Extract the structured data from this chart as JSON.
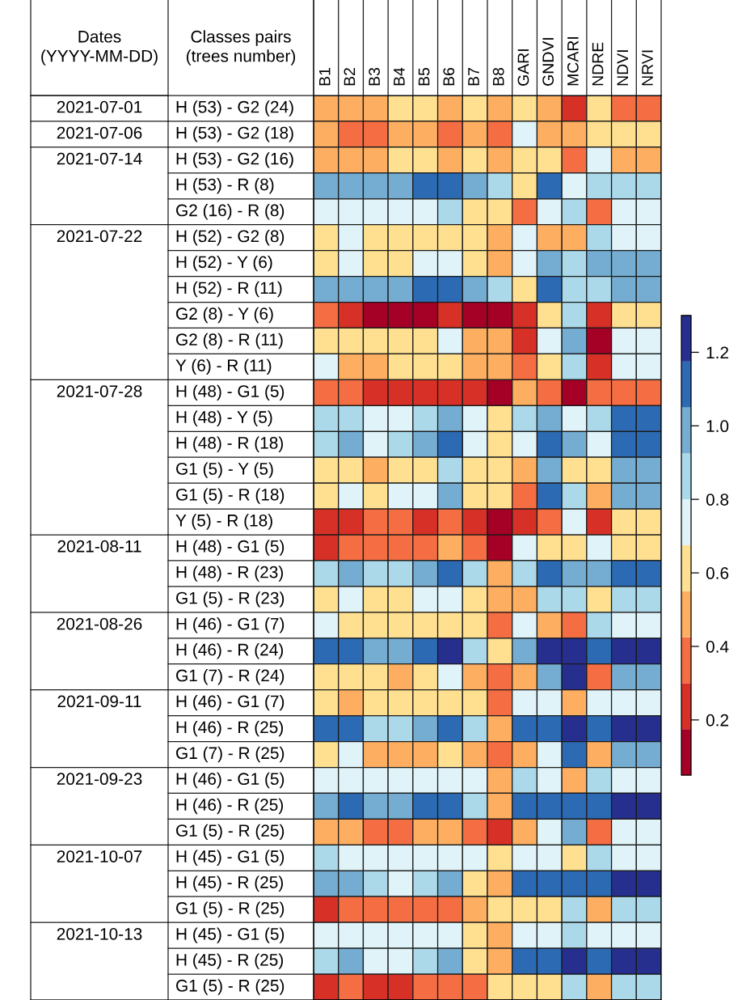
{
  "chart_data": {
    "type": "heatmap",
    "ylabel": "Classes pairs\n(trees number)",
    "y2label": "Dates\n(YYYY-MM-DD)",
    "categories": [
      "B1",
      "B2",
      "B3",
      "B4",
      "B5",
      "B6",
      "B7",
      "B8",
      "GARI",
      "GNDVI",
      "MCARI",
      "NDRE",
      "NDVI",
      "NRVI"
    ],
    "y_categories": [
      "H (53) - G2 (24)",
      "H (53) - G2 (18)",
      "H (53) - G2 (16)",
      "H (53) - R (8)",
      "G2 (16) - R (8)",
      "H (52) - G2 (8)",
      "H (52) - Y (6)",
      "H (52) - R (11)",
      "G2 (8) - Y (6)",
      "G2 (8) - R (11)",
      "Y (6) - R (11)",
      "H (48) - G1 (5)",
      "H (48) - Y (5)",
      "H (48) - R (18)",
      "G1 (5) - Y (5)",
      "G1 (5) - R (18)",
      "Y (5) - R (18)",
      "H (48) - G1 (5)",
      "H (48) - R (23)",
      "G1 (5) - R (23)",
      "H (46) - G1 (7)",
      "H (46) - R (24)",
      "G1 (7) - R (24)",
      "H (46) - G1 (7)",
      "H (46) - R (25)",
      "G1 (7) - R (25)",
      "H (46) - G1 (5)",
      "H (46) - R (25)",
      "G1 (5) - R (25)",
      "H (45) - G1 (5)",
      "H (45) - R (25)",
      "G1 (5) - R (25)",
      "H (45) - G1 (5)",
      "H (45) - R (25)",
      "G1 (5) - R (25)"
    ],
    "y2_categories": [
      "2021-07-01",
      "2021-07-06",
      "2021-07-14",
      null,
      null,
      "2021-07-22",
      null,
      null,
      null,
      null,
      null,
      "2021-07-28",
      null,
      null,
      null,
      null,
      null,
      "2021-08-11",
      null,
      null,
      "2021-08-26",
      null,
      null,
      "2021-09-11",
      null,
      null,
      "2021-09-23",
      null,
      null,
      "2021-10-07",
      null,
      null,
      "2021-10-13",
      null,
      null
    ],
    "cells": [
      [
        0.49,
        0.49,
        0.49,
        0.61,
        0.61,
        0.49,
        0.61,
        0.49,
        0.61,
        0.49,
        0.24,
        0.61,
        0.36,
        0.36
      ],
      [
        0.49,
        0.36,
        0.36,
        0.49,
        0.49,
        0.36,
        0.49,
        0.36,
        0.74,
        0.49,
        0.49,
        0.61,
        0.61,
        0.61
      ],
      [
        0.49,
        0.49,
        0.49,
        0.61,
        0.61,
        0.49,
        0.61,
        0.49,
        0.61,
        0.61,
        0.36,
        0.74,
        0.49,
        0.49
      ],
      [
        0.99,
        0.99,
        0.99,
        0.99,
        1.11,
        1.11,
        0.99,
        0.86,
        0.61,
        1.11,
        0.74,
        0.86,
        0.86,
        0.86
      ],
      [
        0.74,
        0.74,
        0.74,
        0.74,
        0.74,
        0.86,
        0.61,
        0.61,
        0.36,
        0.74,
        0.86,
        0.36,
        0.74,
        0.74
      ],
      [
        0.61,
        0.74,
        0.61,
        0.61,
        0.61,
        0.61,
        0.61,
        0.49,
        0.74,
        0.49,
        0.49,
        0.86,
        0.74,
        0.74
      ],
      [
        0.61,
        0.74,
        0.61,
        0.61,
        0.74,
        0.74,
        0.61,
        0.49,
        0.74,
        0.99,
        0.86,
        0.99,
        0.99,
        0.99
      ],
      [
        0.99,
        0.99,
        0.99,
        0.99,
        1.11,
        1.11,
        0.99,
        0.86,
        0.61,
        1.11,
        0.86,
        0.86,
        0.99,
        0.99
      ],
      [
        0.36,
        0.24,
        0.11,
        0.11,
        0.11,
        0.24,
        0.11,
        0.11,
        0.24,
        0.61,
        0.86,
        0.24,
        0.61,
        0.61
      ],
      [
        0.61,
        0.61,
        0.61,
        0.61,
        0.61,
        0.74,
        0.49,
        0.49,
        0.24,
        0.74,
        0.99,
        0.11,
        0.74,
        0.74
      ],
      [
        0.74,
        0.49,
        0.49,
        0.61,
        0.61,
        0.61,
        0.49,
        0.49,
        0.36,
        0.61,
        0.86,
        0.24,
        0.74,
        0.74
      ],
      [
        0.36,
        0.36,
        0.24,
        0.24,
        0.24,
        0.24,
        0.24,
        0.11,
        0.49,
        0.36,
        0.11,
        0.36,
        0.36,
        0.36
      ],
      [
        0.86,
        0.86,
        0.74,
        0.74,
        0.86,
        0.99,
        0.74,
        0.61,
        0.86,
        0.99,
        0.74,
        0.86,
        1.11,
        1.11
      ],
      [
        0.86,
        0.99,
        0.74,
        0.86,
        0.99,
        1.11,
        0.74,
        0.61,
        0.74,
        1.11,
        0.99,
        0.74,
        1.11,
        1.11
      ],
      [
        0.61,
        0.61,
        0.49,
        0.61,
        0.61,
        0.86,
        0.61,
        0.61,
        0.49,
        0.99,
        0.61,
        0.61,
        0.99,
        0.99
      ],
      [
        0.61,
        0.74,
        0.61,
        0.74,
        0.74,
        0.99,
        0.61,
        0.61,
        0.36,
        1.11,
        0.86,
        0.49,
        0.99,
        0.99
      ],
      [
        0.24,
        0.24,
        0.36,
        0.36,
        0.24,
        0.36,
        0.24,
        0.11,
        0.24,
        0.36,
        0.74,
        0.24,
        0.61,
        0.61
      ],
      [
        0.24,
        0.36,
        0.36,
        0.36,
        0.36,
        0.49,
        0.36,
        0.11,
        0.74,
        0.61,
        0.61,
        0.74,
        0.61,
        0.61
      ],
      [
        0.86,
        0.99,
        0.86,
        0.86,
        0.99,
        1.11,
        0.86,
        0.49,
        0.86,
        1.11,
        0.99,
        0.99,
        1.11,
        1.11
      ],
      [
        0.61,
        0.74,
        0.61,
        0.61,
        0.74,
        0.74,
        0.61,
        0.49,
        0.49,
        0.86,
        0.86,
        0.61,
        0.86,
        0.86
      ],
      [
        0.74,
        0.61,
        0.61,
        0.61,
        0.61,
        0.61,
        0.61,
        0.36,
        0.74,
        0.49,
        0.36,
        0.86,
        0.74,
        0.74
      ],
      [
        1.11,
        1.11,
        0.99,
        0.99,
        1.11,
        1.24,
        0.86,
        0.61,
        0.99,
        1.24,
        1.24,
        1.11,
        1.24,
        1.24
      ],
      [
        0.61,
        0.61,
        0.61,
        0.49,
        0.61,
        0.74,
        0.49,
        0.36,
        0.49,
        0.99,
        1.24,
        0.36,
        0.99,
        0.99
      ],
      [
        0.61,
        0.49,
        0.61,
        0.61,
        0.61,
        0.61,
        0.61,
        0.36,
        0.74,
        0.74,
        0.49,
        0.74,
        0.74,
        0.74
      ],
      [
        1.11,
        1.11,
        0.86,
        0.86,
        0.99,
        1.11,
        0.86,
        0.49,
        1.11,
        1.11,
        1.24,
        1.11,
        1.24,
        1.24
      ],
      [
        0.61,
        0.74,
        0.49,
        0.49,
        0.49,
        0.61,
        0.49,
        0.36,
        0.49,
        0.74,
        1.11,
        0.49,
        0.99,
        0.99
      ],
      [
        0.74,
        0.74,
        0.74,
        0.74,
        0.74,
        0.74,
        0.74,
        0.49,
        0.86,
        0.74,
        0.49,
        0.86,
        0.74,
        0.74
      ],
      [
        0.99,
        1.11,
        0.99,
        0.99,
        1.11,
        1.11,
        0.86,
        0.49,
        1.11,
        1.11,
        1.11,
        1.11,
        1.24,
        1.24
      ],
      [
        0.49,
        0.49,
        0.36,
        0.36,
        0.49,
        0.49,
        0.36,
        0.24,
        0.49,
        0.74,
        0.99,
        0.36,
        0.74,
        0.74
      ],
      [
        0.86,
        0.74,
        0.74,
        0.74,
        0.74,
        0.74,
        0.74,
        0.61,
        0.74,
        0.74,
        0.61,
        0.86,
        0.74,
        0.74
      ],
      [
        0.99,
        0.99,
        0.86,
        0.74,
        0.86,
        0.99,
        0.61,
        0.49,
        1.11,
        1.11,
        1.11,
        1.11,
        1.24,
        1.24
      ],
      [
        0.24,
        0.36,
        0.36,
        0.36,
        0.36,
        0.36,
        0.49,
        0.61,
        0.61,
        0.61,
        0.86,
        0.49,
        0.86,
        0.86
      ],
      [
        0.74,
        0.74,
        0.74,
        0.74,
        0.74,
        0.74,
        0.61,
        0.49,
        0.74,
        0.74,
        0.86,
        0.74,
        0.74,
        0.74
      ],
      [
        0.86,
        0.99,
        0.74,
        0.74,
        0.86,
        0.99,
        0.61,
        0.49,
        1.11,
        1.11,
        1.24,
        1.11,
        1.24,
        1.24
      ],
      [
        0.24,
        0.36,
        0.24,
        0.24,
        0.36,
        0.36,
        0.36,
        0.61,
        0.61,
        0.61,
        0.86,
        0.49,
        0.86,
        0.86
      ]
    ],
    "colors": [
      "#a50026",
      "#d73027",
      "#f46d43",
      "#fdae61",
      "#fee090",
      "#e0f3f8",
      "#abd9e9",
      "#74add1",
      "#2c6ab3",
      "#262f8e"
    ],
    "clim": [
      0.05,
      1.3
    ],
    "cticks": [
      0.2,
      0.4,
      0.6,
      0.8,
      {
        "value": 1,
        "label": "1.0"
      },
      1.2
    ]
  }
}
